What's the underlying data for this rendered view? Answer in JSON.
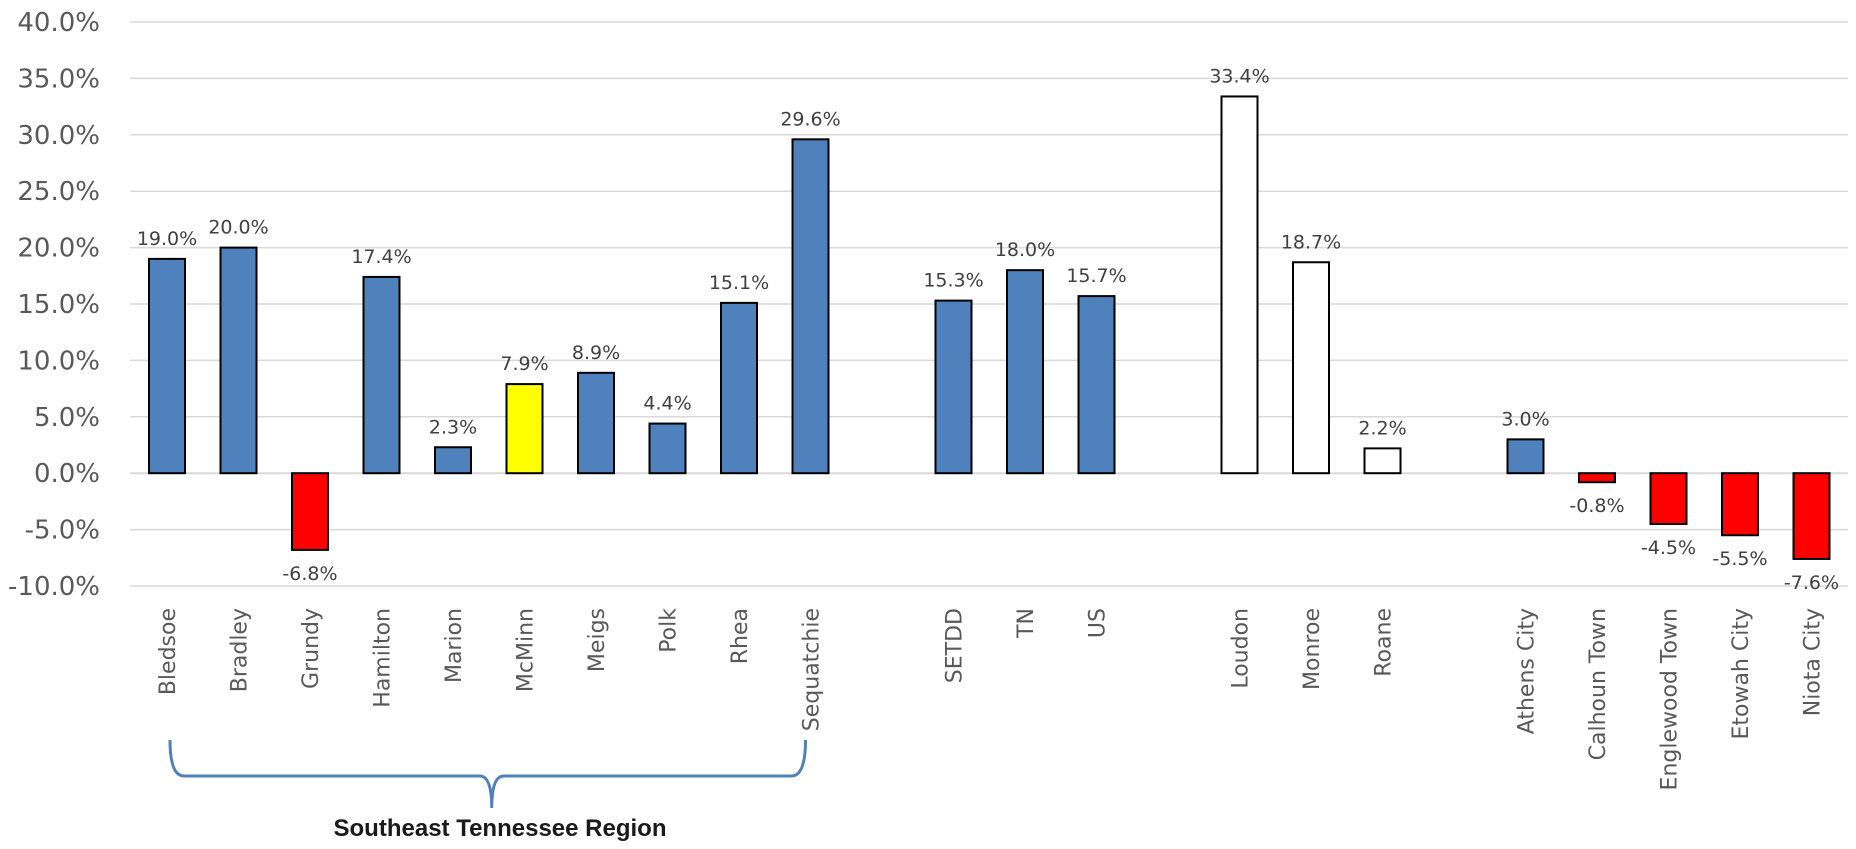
{
  "chart_data": {
    "type": "bar",
    "ylim": [
      -10,
      40
    ],
    "ytick_step": 5,
    "y_tick_format": "percent_1dp",
    "grid": true,
    "categories": [
      "Bledsoe",
      "Bradley",
      "Grundy",
      "Hamilton",
      "Marion",
      "McMinn",
      "Meigs",
      "Polk",
      "Rhea",
      "Sequatchie",
      "SETDD",
      "TN",
      "US",
      "Loudon",
      "Monroe",
      "Roane",
      "Athens City",
      "Calhoun Town",
      "Englewood Town",
      "Etowah City",
      "Niota City"
    ],
    "values": [
      19.0,
      20.0,
      -6.8,
      17.4,
      2.3,
      7.9,
      8.9,
      4.4,
      15.1,
      29.6,
      15.3,
      18.0,
      15.7,
      33.4,
      18.7,
      2.2,
      3.0,
      -0.8,
      -4.5,
      -5.5,
      -7.6
    ],
    "data_labels": [
      "19.0%",
      "20.0%",
      "-6.8%",
      "17.4%",
      "2.3%",
      "7.9%",
      "8.9%",
      "4.4%",
      "15.1%",
      "29.6%",
      "15.3%",
      "18.0%",
      "15.7%",
      "33.4%",
      "18.7%",
      "2.2%",
      "3.0%",
      "-0.8%",
      "-4.5%",
      "-5.5%",
      "-7.6%"
    ],
    "bar_colors": [
      "#4f81bd",
      "#4f81bd",
      "#ff0000",
      "#4f81bd",
      "#4f81bd",
      "#ffff00",
      "#4f81bd",
      "#4f81bd",
      "#4f81bd",
      "#4f81bd",
      "#4f81bd",
      "#4f81bd",
      "#4f81bd",
      "#ffffff",
      "#ffffff",
      "#ffffff",
      "#4f81bd",
      "#ff0000",
      "#ff0000",
      "#ff0000",
      "#ff0000"
    ],
    "region_label": "Southeast Tennessee Region",
    "region_range": [
      "Bledsoe",
      "Sequatchie"
    ],
    "bracket_color": "#4f81bd"
  }
}
